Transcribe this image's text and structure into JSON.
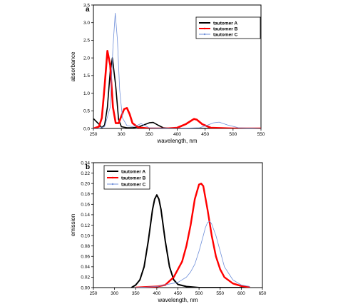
{
  "chart_data": [
    {
      "panel": "a",
      "type": "line",
      "xlabel": "wavelength, nm",
      "ylabel": "absorbance",
      "xlim": [
        250,
        550
      ],
      "ylim": [
        0.0,
        3.5
      ],
      "xticks": [
        250,
        300,
        350,
        400,
        450,
        500,
        550
      ],
      "yticks": [
        0.0,
        0.5,
        1.0,
        1.5,
        2.0,
        2.5,
        3.0,
        3.5
      ],
      "legend_position": "top-right",
      "series": [
        {
          "name": "tautomer A",
          "color": "#000000",
          "x": [
            250,
            260,
            265,
            270,
            275,
            280,
            284,
            290,
            295,
            300,
            310,
            320,
            330,
            340,
            350,
            357,
            365,
            375,
            390,
            420,
            450,
            500,
            550
          ],
          "y": [
            0.28,
            0.12,
            0.02,
            0.1,
            0.6,
            1.6,
            2.0,
            1.2,
            0.25,
            0.05,
            0.02,
            0.02,
            0.04,
            0.1,
            0.16,
            0.17,
            0.1,
            0.02,
            0.0,
            0.0,
            0.0,
            0.0,
            0.0
          ]
        },
        {
          "name": "tautomer B",
          "color": "#ff0000",
          "x": [
            250,
            260,
            265,
            270,
            275,
            280,
            285,
            290,
            295,
            300,
            305,
            310,
            315,
            320,
            330,
            350,
            380,
            400,
            415,
            425,
            430,
            435,
            445,
            460,
            500,
            550
          ],
          "y": [
            0.0,
            0.05,
            0.3,
            1.2,
            2.2,
            1.8,
            0.6,
            0.15,
            0.15,
            0.35,
            0.55,
            0.58,
            0.4,
            0.15,
            0.03,
            0.0,
            0.0,
            0.02,
            0.12,
            0.22,
            0.27,
            0.25,
            0.12,
            0.02,
            0.0,
            0.0
          ]
        },
        {
          "name": "tautomer C",
          "color": "#6f8fd9",
          "x": [
            250,
            260,
            270,
            280,
            285,
            289,
            293,
            297,
            302,
            310,
            320,
            330,
            335,
            340,
            350,
            400,
            440,
            455,
            465,
            475,
            490,
            510,
            550
          ],
          "y": [
            0.0,
            0.0,
            0.05,
            0.6,
            2.3,
            3.27,
            2.5,
            1.1,
            0.3,
            0.08,
            0.05,
            0.1,
            0.14,
            0.1,
            0.02,
            0.0,
            0.02,
            0.1,
            0.16,
            0.18,
            0.1,
            0.02,
            0.0
          ]
        }
      ]
    },
    {
      "panel": "b",
      "type": "line",
      "xlabel": "wavelength, nm",
      "ylabel": "emission",
      "xlim": [
        250,
        650
      ],
      "ylim": [
        0.0,
        0.24
      ],
      "xticks": [
        250,
        300,
        350,
        400,
        450,
        500,
        550,
        600,
        650
      ],
      "yticks": [
        0.0,
        0.02,
        0.04,
        0.06,
        0.08,
        0.1,
        0.12,
        0.14,
        0.16,
        0.18,
        0.2,
        0.22,
        0.24
      ],
      "legend_position": "top-left",
      "series": [
        {
          "name": "tautomer A",
          "color": "#000000",
          "x": [
            340,
            350,
            360,
            370,
            380,
            390,
            395,
            400,
            405,
            410,
            420,
            430,
            440,
            450,
            470,
            500,
            550,
            620
          ],
          "y": [
            0.0,
            0.005,
            0.015,
            0.04,
            0.09,
            0.15,
            0.17,
            0.178,
            0.17,
            0.15,
            0.09,
            0.04,
            0.015,
            0.006,
            0.002,
            0.0,
            0.0,
            0.0
          ]
        },
        {
          "name": "tautomer B",
          "color": "#ff0000",
          "x": [
            350,
            400,
            420,
            440,
            460,
            470,
            480,
            490,
            500,
            505,
            510,
            520,
            530,
            540,
            550,
            560,
            580,
            600,
            620
          ],
          "y": [
            0.0,
            0.002,
            0.005,
            0.02,
            0.05,
            0.08,
            0.12,
            0.17,
            0.198,
            0.2,
            0.195,
            0.15,
            0.1,
            0.06,
            0.035,
            0.02,
            0.008,
            0.003,
            0.001
          ]
        },
        {
          "name": "tautomer C",
          "color": "#6f8fd9",
          "x": [
            350,
            400,
            450,
            470,
            480,
            490,
            500,
            510,
            515,
            520,
            525,
            530,
            540,
            550,
            560,
            580,
            600,
            620
          ],
          "y": [
            0.0,
            0.002,
            0.01,
            0.02,
            0.03,
            0.045,
            0.07,
            0.1,
            0.115,
            0.125,
            0.128,
            0.122,
            0.1,
            0.07,
            0.04,
            0.015,
            0.005,
            0.002
          ]
        }
      ]
    }
  ]
}
